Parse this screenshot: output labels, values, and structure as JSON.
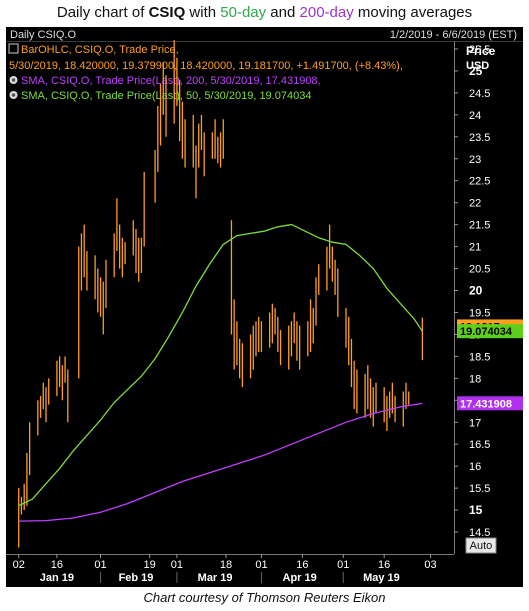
{
  "header": {
    "title_prefix": "Daily chart of ",
    "ticker": "CSIQ",
    "title_mid": " with ",
    "ma50_label": "50-day",
    "title_and": " and ",
    "ma200_label": "200-day",
    "title_suffix": " moving averages"
  },
  "panel": {
    "chart_name": "Daily CSIQ.O",
    "date_range": "1/2/2019 - 6/6/2019 (EST)",
    "axis_title": "Price",
    "axis_unit": "USD",
    "auto_label": "Auto"
  },
  "legend": [
    {
      "line1": "BarOHLC, CSIQ.O, Trade Price,",
      "line2": "5/30/2019, 18.420000, 19.379900, 18.420000, 19.181700, +1.491700, (+8.43%),",
      "color": "#ff9f1c"
    },
    {
      "line1": "SMA, CSIQ.O, Trade Price(Last), 200, 5/30/2019, 17.431908,",
      "line2": "",
      "color": "#c040ff"
    },
    {
      "line1": "SMA, CSIQ.O, Trade Price(Last), 50, 5/30/2019, 19.074034",
      "line2": "",
      "color": "#7ddc3a"
    }
  ],
  "caption": "Chart courtesy of Thomson Reuters Eikon",
  "chart_data": {
    "type": "line",
    "title": "Daily chart of CSIQ with 50-day and 200-day moving averages",
    "ylabel": "Price USD",
    "ylim": [
      14,
      26
    ],
    "y_ticks": [
      14.5,
      15,
      15.5,
      16,
      16.5,
      17,
      17.5,
      18,
      18.5,
      19,
      19.5,
      20,
      20.5,
      21,
      21.5,
      22,
      22.5,
      23,
      23.5,
      24,
      24.5,
      25,
      25.5
    ],
    "y_ticks_bold": [
      15,
      20,
      25
    ],
    "x_ticks": [
      {
        "day": 0,
        "label": "02"
      },
      {
        "day": 14,
        "label": "16"
      },
      {
        "day": 30,
        "label": "01"
      },
      {
        "day": 48,
        "label": "19"
      },
      {
        "day": 58,
        "label": "01"
      },
      {
        "day": 76,
        "label": "18"
      },
      {
        "day": 89,
        "label": "01"
      },
      {
        "day": 104,
        "label": "16"
      },
      {
        "day": 119,
        "label": "01"
      },
      {
        "day": 134,
        "label": "16"
      },
      {
        "day": 151,
        "label": "03"
      }
    ],
    "month_labels": [
      {
        "day": 14,
        "label": "Jan 19"
      },
      {
        "day": 43,
        "label": "Feb 19"
      },
      {
        "day": 72,
        "label": "Mar 19"
      },
      {
        "day": 103,
        "label": "Apr 19"
      },
      {
        "day": 133,
        "label": "May 19"
      }
    ],
    "x_range_days": [
      -1,
      153
    ],
    "price_bars": [
      {
        "day": 0,
        "high": 15.5,
        "low": 14.15
      },
      {
        "day": 1,
        "high": 15.3,
        "low": 14.9
      },
      {
        "day": 2,
        "high": 15.6,
        "low": 15.0
      },
      {
        "day": 3,
        "high": 16.3,
        "low": 15.1
      },
      {
        "day": 4,
        "high": 17.0,
        "low": 15.8
      },
      {
        "day": 7,
        "high": 17.5,
        "low": 16.7
      },
      {
        "day": 8,
        "high": 17.6,
        "low": 17.1
      },
      {
        "day": 9,
        "high": 17.9,
        "low": 17.3
      },
      {
        "day": 10,
        "high": 17.8,
        "low": 17.0
      },
      {
        "day": 11,
        "high": 18.0,
        "low": 17.4
      },
      {
        "day": 14,
        "high": 18.4,
        "low": 17.6
      },
      {
        "day": 15,
        "high": 18.5,
        "low": 17.8
      },
      {
        "day": 16,
        "high": 18.3,
        "low": 17.5
      },
      {
        "day": 17,
        "high": 18.5,
        "low": 17.9
      },
      {
        "day": 18,
        "high": 18.2,
        "low": 17.0
      },
      {
        "day": 22,
        "high": 21.0,
        "low": 18.0
      },
      {
        "day": 23,
        "high": 21.3,
        "low": 20.0
      },
      {
        "day": 24,
        "high": 21.5,
        "low": 20.3
      },
      {
        "day": 25,
        "high": 20.9,
        "low": 20.0
      },
      {
        "day": 28,
        "high": 20.8,
        "low": 19.8
      },
      {
        "day": 29,
        "high": 20.5,
        "low": 19.5
      },
      {
        "day": 30,
        "high": 20.3,
        "low": 19.4
      },
      {
        "day": 31,
        "high": 20.2,
        "low": 19.0
      },
      {
        "day": 32,
        "high": 20.7,
        "low": 19.6
      },
      {
        "day": 35,
        "high": 21.3,
        "low": 20.3
      },
      {
        "day": 36,
        "high": 22.1,
        "low": 20.9
      },
      {
        "day": 37,
        "high": 21.5,
        "low": 20.5
      },
      {
        "day": 38,
        "high": 21.2,
        "low": 20.3
      },
      {
        "day": 39,
        "high": 21.1,
        "low": 20.6
      },
      {
        "day": 42,
        "high": 21.6,
        "low": 20.8
      },
      {
        "day": 43,
        "high": 21.4,
        "low": 20.4
      },
      {
        "day": 44,
        "high": 21.2,
        "low": 20.2
      },
      {
        "day": 45,
        "high": 21.2,
        "low": 20.4
      },
      {
        "day": 46,
        "high": 22.7,
        "low": 21.0
      },
      {
        "day": 50,
        "high": 23.2,
        "low": 22.0
      },
      {
        "day": 51,
        "high": 24.2,
        "low": 22.7
      },
      {
        "day": 52,
        "high": 24.7,
        "low": 23.3
      },
      {
        "day": 53,
        "high": 25.2,
        "low": 24.0
      },
      {
        "day": 54,
        "high": 24.9,
        "low": 23.5
      },
      {
        "day": 57,
        "high": 25.7,
        "low": 23.8
      },
      {
        "day": 58,
        "high": 25.3,
        "low": 24.2
      },
      {
        "day": 59,
        "high": 24.8,
        "low": 23.4
      },
      {
        "day": 60,
        "high": 24.3,
        "low": 23.0
      },
      {
        "day": 61,
        "high": 23.9,
        "low": 22.8
      },
      {
        "day": 64,
        "high": 24.0,
        "low": 22.8
      },
      {
        "day": 65,
        "high": 23.3,
        "low": 22.1
      },
      {
        "day": 66,
        "high": 23.8,
        "low": 22.8
      },
      {
        "day": 67,
        "high": 24.0,
        "low": 23.2
      },
      {
        "day": 68,
        "high": 23.6,
        "low": 22.6
      },
      {
        "day": 71,
        "high": 23.6,
        "low": 23.0
      },
      {
        "day": 72,
        "high": 23.9,
        "low": 23.0
      },
      {
        "day": 73,
        "high": 23.5,
        "low": 22.9
      },
      {
        "day": 74,
        "high": 23.6,
        "low": 22.8
      },
      {
        "day": 75,
        "high": 23.9,
        "low": 23.0
      },
      {
        "day": 78,
        "high": 21.6,
        "low": 19.0
      },
      {
        "day": 79,
        "high": 19.8,
        "low": 18.2
      },
      {
        "day": 80,
        "high": 19.3,
        "low": 18.3
      },
      {
        "day": 81,
        "high": 18.9,
        "low": 18.0
      },
      {
        "day": 82,
        "high": 18.8,
        "low": 17.8
      },
      {
        "day": 85,
        "high": 19.0,
        "low": 18.0
      },
      {
        "day": 86,
        "high": 19.2,
        "low": 18.2
      },
      {
        "day": 87,
        "high": 19.3,
        "low": 18.5
      },
      {
        "day": 88,
        "high": 19.4,
        "low": 18.6
      },
      {
        "day": 89,
        "high": 19.3,
        "low": 18.6
      },
      {
        "day": 92,
        "high": 19.5,
        "low": 18.7
      },
      {
        "day": 93,
        "high": 19.7,
        "low": 18.8
      },
      {
        "day": 94,
        "high": 19.6,
        "low": 19.0
      },
      {
        "day": 95,
        "high": 19.4,
        "low": 18.6
      },
      {
        "day": 96,
        "high": 19.1,
        "low": 18.3
      },
      {
        "day": 99,
        "high": 19.2,
        "low": 18.2
      },
      {
        "day": 100,
        "high": 19.3,
        "low": 18.5
      },
      {
        "day": 101,
        "high": 19.5,
        "low": 18.8
      },
      {
        "day": 102,
        "high": 19.3,
        "low": 18.4
      },
      {
        "day": 103,
        "high": 19.2,
        "low": 18.2
      },
      {
        "day": 106,
        "high": 19.3,
        "low": 18.5
      },
      {
        "day": 107,
        "high": 19.8,
        "low": 18.6
      },
      {
        "day": 108,
        "high": 19.6,
        "low": 18.8
      },
      {
        "day": 109,
        "high": 20.3,
        "low": 19.2
      },
      {
        "day": 110,
        "high": 20.6,
        "low": 19.9
      },
      {
        "day": 113,
        "high": 21.0,
        "low": 20.0
      },
      {
        "day": 114,
        "high": 21.5,
        "low": 20.5
      },
      {
        "day": 115,
        "high": 21.0,
        "low": 20.2
      },
      {
        "day": 116,
        "high": 20.7,
        "low": 19.9
      },
      {
        "day": 117,
        "high": 20.5,
        "low": 19.4
      },
      {
        "day": 120,
        "high": 19.6,
        "low": 18.7
      },
      {
        "day": 121,
        "high": 19.4,
        "low": 18.3
      },
      {
        "day": 122,
        "high": 18.9,
        "low": 17.8
      },
      {
        "day": 123,
        "high": 18.4,
        "low": 17.3
      },
      {
        "day": 124,
        "high": 18.2,
        "low": 17.2
      },
      {
        "day": 127,
        "high": 18.1,
        "low": 17.1
      },
      {
        "day": 128,
        "high": 18.3,
        "low": 17.3
      },
      {
        "day": 129,
        "high": 18.0,
        "low": 17.1
      },
      {
        "day": 130,
        "high": 17.8,
        "low": 16.9
      },
      {
        "day": 131,
        "high": 17.9,
        "low": 17.2
      },
      {
        "day": 134,
        "high": 17.8,
        "low": 17.0
      },
      {
        "day": 135,
        "high": 17.6,
        "low": 16.8
      },
      {
        "day": 136,
        "high": 17.7,
        "low": 17.1
      },
      {
        "day": 137,
        "high": 17.9,
        "low": 17.2
      },
      {
        "day": 138,
        "high": 17.6,
        "low": 17.0
      },
      {
        "day": 141,
        "high": 17.7,
        "low": 16.9
      },
      {
        "day": 142,
        "high": 17.9,
        "low": 17.3
      },
      {
        "day": 143,
        "high": 17.7,
        "low": 17.4
      },
      {
        "day": 148,
        "high": 19.38,
        "low": 18.42
      }
    ],
    "series": [
      {
        "name": "SMA, CSIQ.O, Trade Price(Last), 200",
        "color": "#c040ff",
        "last_value": 17.431908,
        "x": [
          0,
          10,
          20,
          30,
          40,
          50,
          60,
          70,
          80,
          90,
          100,
          110,
          120,
          130,
          140,
          148
        ],
        "y": [
          14.75,
          14.76,
          14.82,
          14.95,
          15.15,
          15.4,
          15.65,
          15.85,
          16.05,
          16.25,
          16.5,
          16.75,
          17.0,
          17.2,
          17.35,
          17.43
        ]
      },
      {
        "name": "SMA, CSIQ.O, Trade Price(Last), 50",
        "color": "#7ddc3a",
        "last_value": 19.074034,
        "x": [
          0,
          5,
          10,
          15,
          20,
          25,
          30,
          35,
          40,
          45,
          50,
          55,
          60,
          65,
          70,
          75,
          80,
          85,
          90,
          95,
          100,
          105,
          110,
          115,
          120,
          125,
          130,
          135,
          140,
          145,
          148
        ],
        "y": [
          15.1,
          15.25,
          15.6,
          15.95,
          16.35,
          16.7,
          17.05,
          17.45,
          17.75,
          18.05,
          18.45,
          18.95,
          19.5,
          20.1,
          20.6,
          21.05,
          21.25,
          21.3,
          21.35,
          21.45,
          21.5,
          21.35,
          21.2,
          21.1,
          21.05,
          20.8,
          20.5,
          20.05,
          19.7,
          19.35,
          19.07
        ]
      }
    ],
    "last_price": 19.1817
  }
}
